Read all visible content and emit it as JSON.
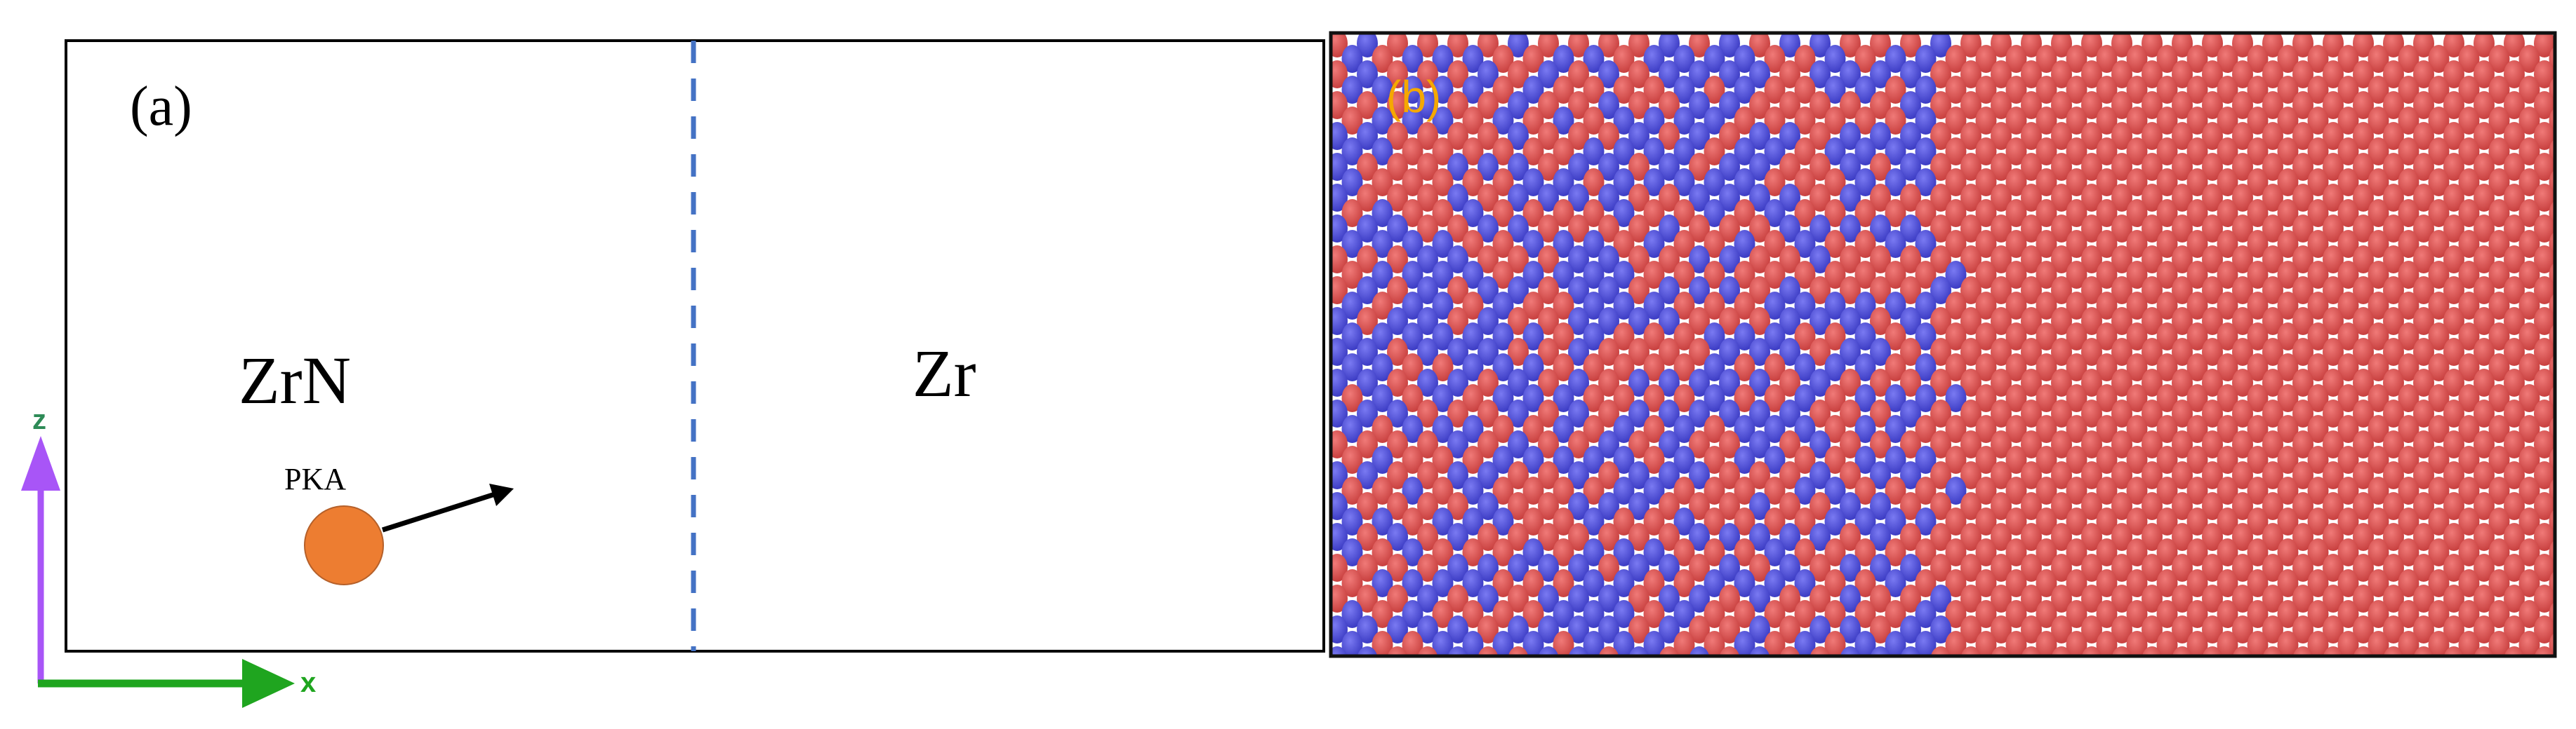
{
  "panel_a": {
    "label": "(a)",
    "left_region": "ZrN",
    "right_region": "Zr",
    "pka_label": "PKA",
    "axes": {
      "vertical": "z",
      "horizontal": "x"
    },
    "colors": {
      "pka": "#ed7d31",
      "interface_line": "#4472c4",
      "z_axis": "#a855f7",
      "x_axis": "#1fa51f",
      "axis_label": "#2e8b57"
    }
  },
  "panel_b": {
    "label": "(b)",
    "label_color": "#f5a800",
    "atom_colors": {
      "zr": "#e8504f",
      "n": "#5656e6"
    }
  }
}
